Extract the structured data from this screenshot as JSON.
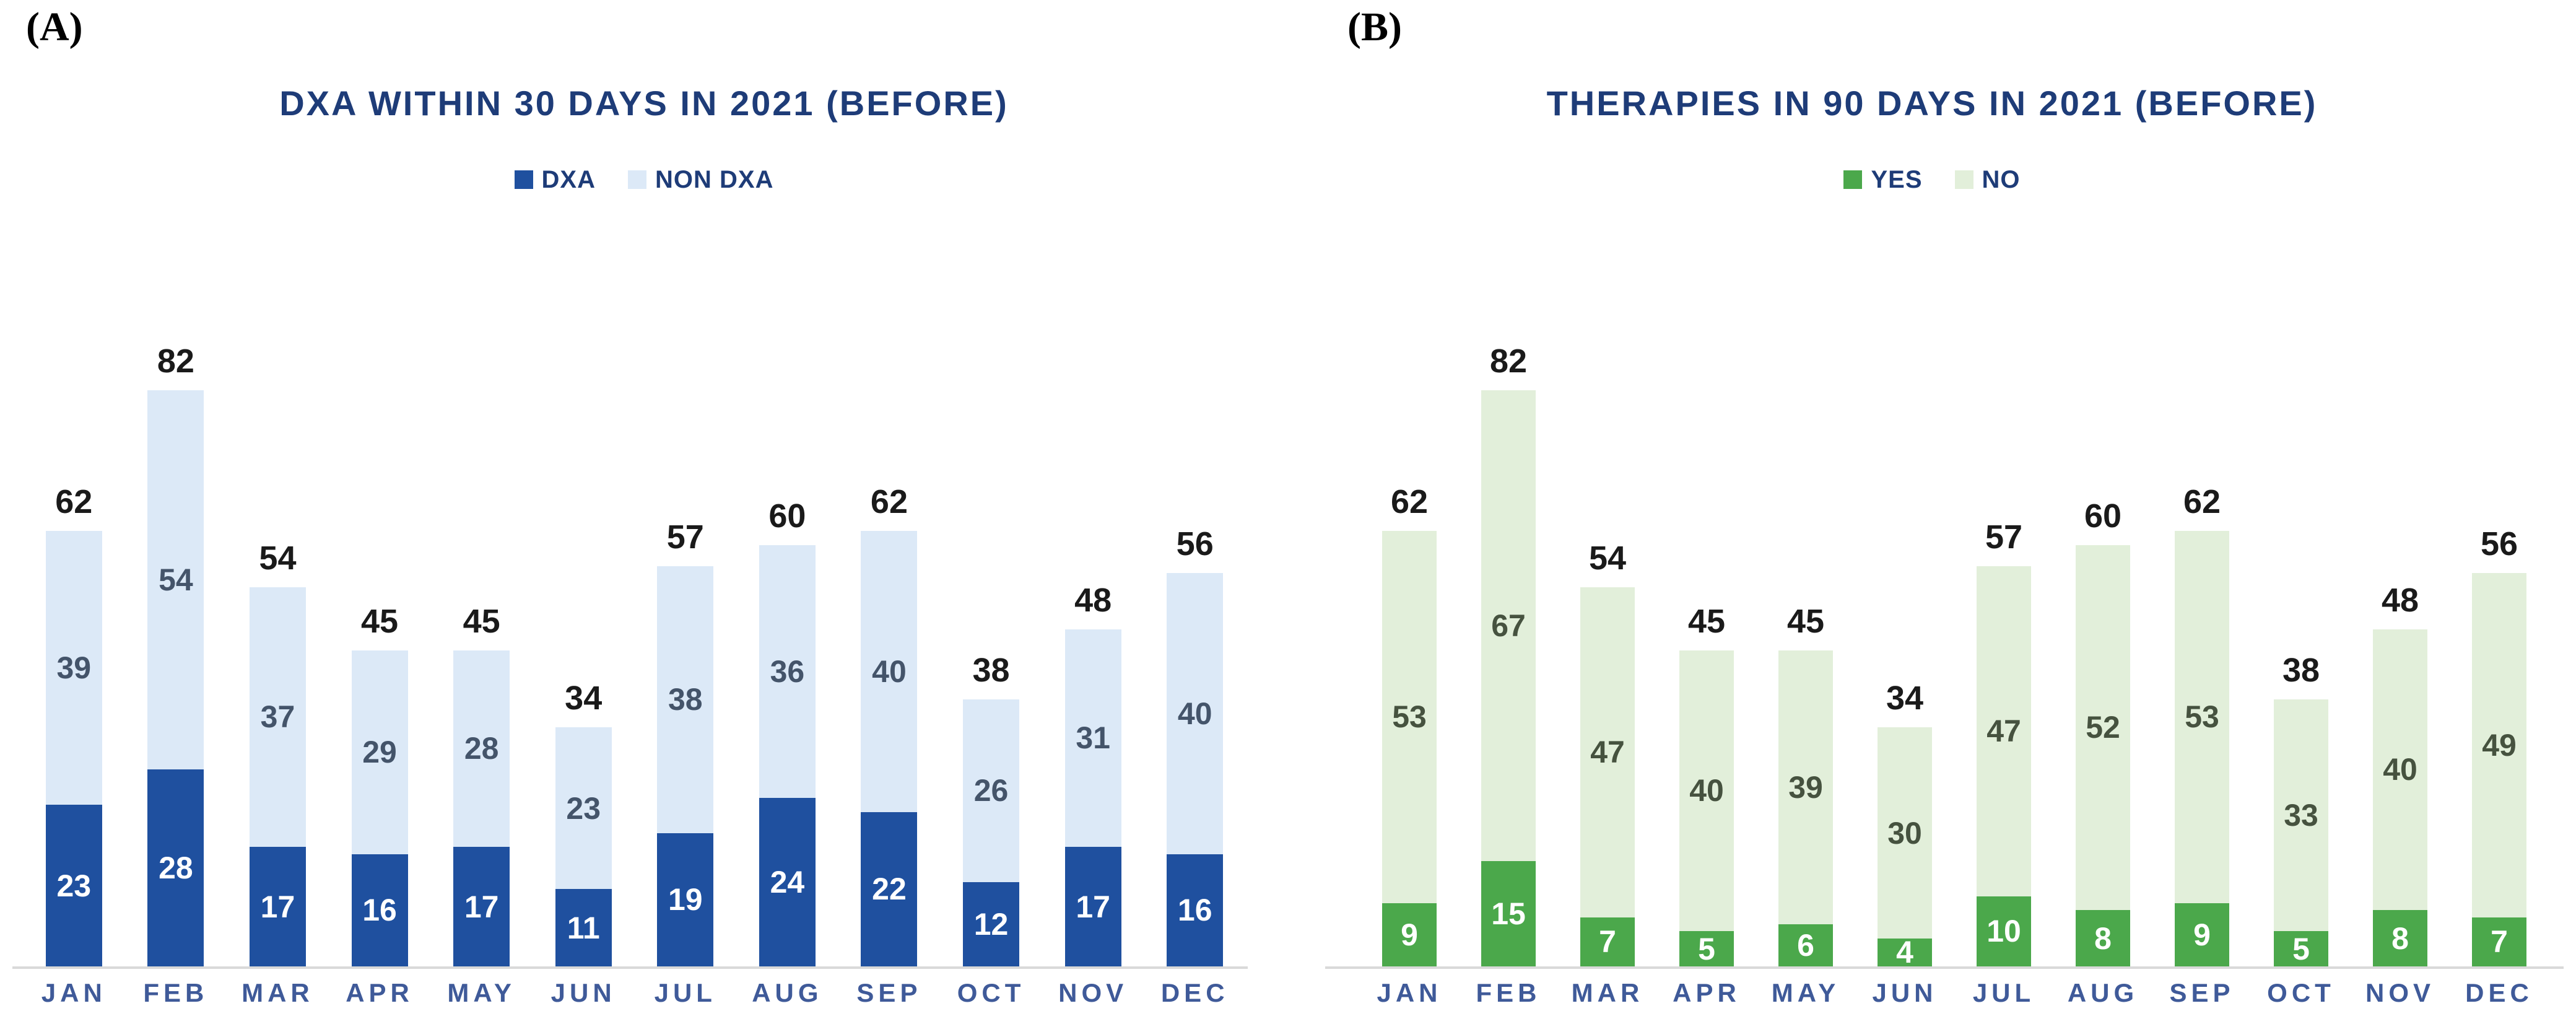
{
  "panels": [
    {
      "corner_label": "(A)"
    },
    {
      "corner_label": "(B)"
    }
  ],
  "chart_data": [
    {
      "type": "bar",
      "stacked": true,
      "title": "DXA WITHIN 30 DAYS IN 2021 (BEFORE)",
      "categories": [
        "JAN",
        "FEB",
        "MAR",
        "APR",
        "MAY",
        "JUN",
        "JUL",
        "AUG",
        "SEP",
        "OCT",
        "NOV",
        "DEC"
      ],
      "series": [
        {
          "name": "DXA",
          "color": "#1F509F",
          "label_color": "#FFFFFF",
          "values": [
            23,
            28,
            17,
            16,
            17,
            11,
            19,
            24,
            22,
            12,
            17,
            16
          ]
        },
        {
          "name": "NON DXA",
          "color": "#DCE9F7",
          "label_color": "#44546A",
          "values": [
            39,
            54,
            37,
            29,
            28,
            23,
            38,
            36,
            40,
            26,
            31,
            40
          ]
        }
      ],
      "totals": [
        62,
        82,
        54,
        45,
        45,
        34,
        57,
        60,
        62,
        38,
        48,
        56
      ],
      "ylim": [
        0,
        82
      ],
      "legend_position": "top",
      "gridlines": false,
      "axis_line_color": "#D9D9D9",
      "title_color": "#1E3C78",
      "category_color": "#3F5A99",
      "total_color": "#1A1A1A"
    },
    {
      "type": "bar",
      "stacked": true,
      "title": "THERAPIES IN 90 DAYS IN 2021 (BEFORE)",
      "categories": [
        "JAN",
        "FEB",
        "MAR",
        "APR",
        "MAY",
        "JUN",
        "JUL",
        "AUG",
        "SEP",
        "OCT",
        "NOV",
        "DEC"
      ],
      "series": [
        {
          "name": "YES",
          "color": "#4BA84B",
          "label_color": "#FFFFFF",
          "values": [
            9,
            15,
            7,
            5,
            6,
            4,
            10,
            8,
            9,
            5,
            8,
            7
          ]
        },
        {
          "name": "NO",
          "color": "#E2EFDA",
          "label_color": "#46523F",
          "values": [
            53,
            67,
            47,
            40,
            39,
            30,
            47,
            52,
            53,
            33,
            40,
            49
          ]
        }
      ],
      "totals": [
        62,
        82,
        54,
        45,
        45,
        34,
        57,
        60,
        62,
        38,
        48,
        56
      ],
      "ylim": [
        0,
        82
      ],
      "legend_position": "top",
      "gridlines": false,
      "axis_line_color": "#D9D9D9",
      "title_color": "#1E3C78",
      "category_color": "#3F5A99",
      "total_color": "#1A1A1A"
    }
  ]
}
